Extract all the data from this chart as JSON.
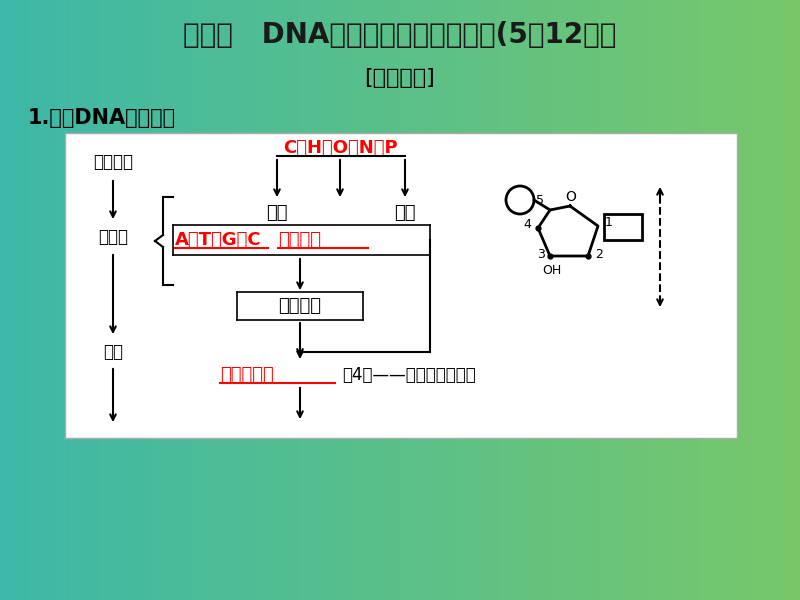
{
  "title": "考点一   DNA分子的结构及相关计算(5年12考）",
  "subtitle": "[自主梳理]",
  "section": "1.图解DNA分子结构",
  "bg_color_left": "#3db8a8",
  "bg_color_right": "#78c86a",
  "box_bg": "#ffffff",
  "title_color": "#1a1a1a",
  "red_color": "#ff0000",
  "black_color": "#000000",
  "elements_label": "C、H、O、N、P",
  "jiji_label": "碱基",
  "linsuian_label": "磷酸",
  "atgc_label": "A、T、G、C",
  "tuoyang_label": "脱氧核糖",
  "nucleoside_label": "脱氧核苷",
  "monomer_label": "脱氧核苷酸",
  "note_label": "（4种——含氮碱基不同）",
  "yuansu_label": "元素组成",
  "xiaofen_label": "小分子",
  "danti_label": "单体"
}
